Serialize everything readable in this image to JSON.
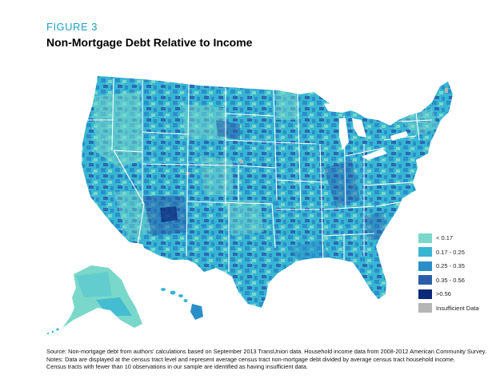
{
  "figure": {
    "label": "FIGURE 3",
    "title": "Non-Mortgage Debt Relative to Income"
  },
  "legend": {
    "items": [
      {
        "label": "< 0.17",
        "color": "#79d8c9"
      },
      {
        "label": "0.17 - 0.25",
        "color": "#37b6d4"
      },
      {
        "label": "0.25 - 0.35",
        "color": "#2a8fc8"
      },
      {
        "label": "0.35 - 0.56",
        "color": "#2a5caa"
      },
      {
        "label": ">0.56",
        "color": "#0c2a7a"
      },
      {
        "label": "Insufficient Data",
        "color": "#b5b5b5"
      }
    ]
  },
  "source": {
    "line1": "Source: Non-mortgage debt from authors' calculations based on September 2013 TransUnion data. Household income data from 2008-2012 American Community Survey.",
    "line2": "Notes: Data are displayed at the census tract level and represent average census tract non-mortgage debt divided by average census tract household income.",
    "line3": "Census tracts with fewer than 10 observations in our sample are identified as having insufficient data."
  },
  "colors": {
    "base": "#37b6d4",
    "state_border": "#ffffff",
    "label_accent": "#1f9fc4"
  }
}
